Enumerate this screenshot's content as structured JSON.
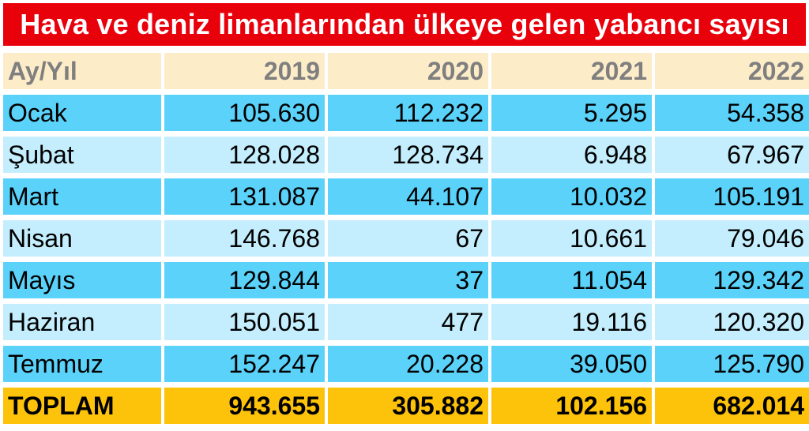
{
  "chart_data": {
    "type": "table",
    "title": "Hava ve deniz limanlarından ülkeye gelen yabancı sayısı",
    "corner_label": "Ay/Yıl",
    "columns": [
      "2019",
      "2020",
      "2021",
      "2022"
    ],
    "rows": [
      {
        "label": "Ocak",
        "values": [
          "105.630",
          "112.232",
          "5.295",
          "54.358"
        ]
      },
      {
        "label": "Şubat",
        "values": [
          "128.028",
          "128.734",
          "6.948",
          "67.967"
        ]
      },
      {
        "label": "Mart",
        "values": [
          "131.087",
          "44.107",
          "10.032",
          "105.191"
        ]
      },
      {
        "label": "Nisan",
        "values": [
          "146.768",
          "67",
          "10.661",
          "79.046"
        ]
      },
      {
        "label": "Mayıs",
        "values": [
          "129.844",
          "37",
          "11.054",
          "129.342"
        ]
      },
      {
        "label": "Haziran",
        "values": [
          "150.051",
          "477",
          "19.116",
          "120.320"
        ]
      },
      {
        "label": "Temmuz",
        "values": [
          "152.247",
          "20.228",
          "39.050",
          "125.790"
        ]
      }
    ],
    "total": {
      "label": "TOPLAM",
      "values": [
        "943.655",
        "305.882",
        "102.156",
        "682.014"
      ]
    }
  },
  "colors": {
    "title_bg": "#e8000b",
    "header_bg": "#fdecc8",
    "row_dark": "#5ad2fa",
    "row_light": "#c4eefd",
    "total_bg": "#fdc20a"
  }
}
